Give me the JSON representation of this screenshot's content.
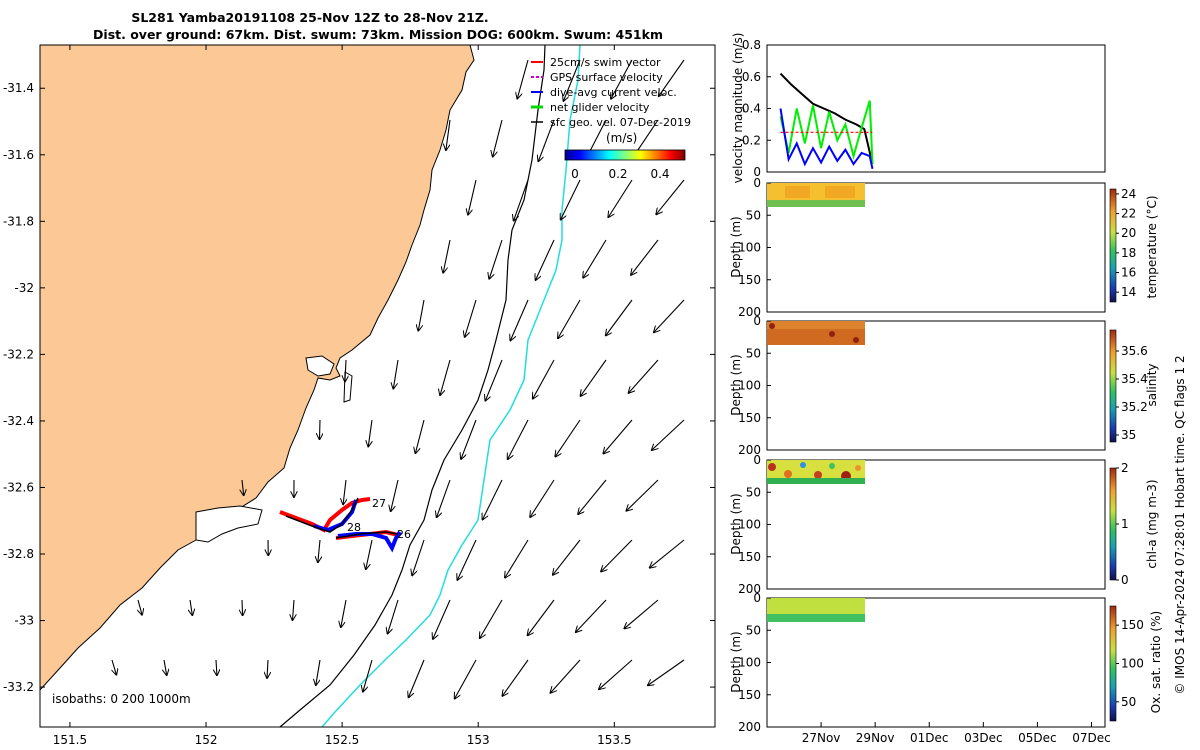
{
  "title_line1": "SL281 Yamba20191108 25-Nov 12Z to 28-Nov 21Z.",
  "title_line2": "Dist. over ground: 67km. Dist. swum: 73km. Mission DOG: 600km. Swum: 451km",
  "map": {
    "type": "map",
    "lon_ticks": [
      "151.5",
      "152",
      "152.5",
      "153",
      "153.5"
    ],
    "lat_ticks": [
      "-31.4",
      "-31.6",
      "-31.8",
      "-32",
      "-32.2",
      "-32.4",
      "-32.6",
      "-32.8",
      "-33",
      "-33.2"
    ],
    "lon_range": [
      151.39,
      153.87
    ],
    "lat_range": [
      -33.32,
      -31.27
    ],
    "legend": [
      {
        "label": "25cm/s swim vector",
        "color": "#ff0000",
        "style": "solid"
      },
      {
        "label": "GPS surface velocity",
        "color": "#cc00cc",
        "style": "dashed"
      },
      {
        "label": "dive-avg current veloc.",
        "color": "#0000ff",
        "style": "solid"
      },
      {
        "label": "net glider velocity",
        "color": "#00dd00",
        "style": "solid"
      },
      {
        "label": "sfc geo. vel. 07-Dec-2019",
        "color": "#000000",
        "style": "solid"
      }
    ],
    "colorbar_title": "(m/s)",
    "colorbar_ticks": [
      "0",
      "0.2",
      "0.4"
    ],
    "isobaths_label": "isobaths: 0   200  1000m",
    "track_labels": [
      "27",
      "28",
      "26"
    ],
    "land_color": "#fbc896",
    "contour_200_color": "#000000",
    "contour_1000_color": "#22dddd"
  },
  "chart_data": [
    {
      "type": "line",
      "ylabel": "velocity magnitude (m/s)",
      "ylim": [
        0,
        0.8
      ],
      "yticks": [
        "0",
        "0.2",
        "0.4",
        "0.6",
        "0.8"
      ],
      "x_dates": [
        "27Nov",
        "29Nov",
        "01Dec",
        "03Dec",
        "05Dec",
        "07Dec"
      ],
      "series": [
        {
          "color": "#000000",
          "x": [
            25.5,
            25.9,
            26.3,
            26.7,
            27.1,
            27.5,
            27.9,
            28.3,
            28.6,
            28.9
          ],
          "values": [
            0.62,
            0.55,
            0.49,
            0.43,
            0.4,
            0.37,
            0.33,
            0.3,
            0.27,
            0.05
          ]
        },
        {
          "color": "#00ee00",
          "x": [
            25.5,
            25.8,
            26.1,
            26.4,
            26.7,
            27.0,
            27.3,
            27.6,
            27.9,
            28.2,
            28.5,
            28.8,
            28.9
          ],
          "values": [
            0.35,
            0.12,
            0.4,
            0.18,
            0.42,
            0.15,
            0.38,
            0.2,
            0.3,
            0.1,
            0.28,
            0.45,
            0.05
          ]
        },
        {
          "color": "#0000ff",
          "x": [
            25.5,
            25.8,
            26.1,
            26.4,
            26.7,
            27.0,
            27.3,
            27.6,
            27.9,
            28.2,
            28.5,
            28.8,
            28.9
          ],
          "values": [
            0.4,
            0.08,
            0.18,
            0.05,
            0.15,
            0.06,
            0.16,
            0.07,
            0.14,
            0.05,
            0.12,
            0.1,
            0.02
          ]
        },
        {
          "color": "#ff0000",
          "x": [
            25.5,
            28.9
          ],
          "values": [
            0.25,
            0.25
          ]
        }
      ]
    },
    {
      "type": "heatmap",
      "ylabel": "Depth (m)",
      "ylim": [
        200,
        0
      ],
      "yticks": [
        "0",
        "50",
        "100",
        "150",
        "200"
      ],
      "cbar_label": "temperature (°C)",
      "cbar_ticks": [
        "14",
        "16",
        "18",
        "20",
        "22",
        "24"
      ],
      "crange": [
        13,
        24.5
      ]
    },
    {
      "type": "heatmap",
      "ylabel": "Depth (m)",
      "ylim": [
        200,
        0
      ],
      "yticks": [
        "0",
        "50",
        "100",
        "150",
        "200"
      ],
      "cbar_label": "salinity",
      "cbar_ticks": [
        "35",
        "35.2",
        "35.4",
        "35.6"
      ],
      "crange": [
        34.95,
        35.75
      ]
    },
    {
      "type": "heatmap",
      "ylabel": "Depth (m)",
      "ylim": [
        200,
        0
      ],
      "yticks": [
        "0",
        "50",
        "100",
        "150",
        "200"
      ],
      "cbar_label": "chl-a (mg m-3)",
      "cbar_ticks": [
        "0",
        "1",
        "2"
      ],
      "crange": [
        0,
        2
      ]
    },
    {
      "type": "heatmap",
      "ylabel": "Depth (m)",
      "ylim": [
        200,
        0
      ],
      "yticks": [
        "0",
        "50",
        "100",
        "150",
        "200"
      ],
      "cbar_label": "Ox. sat. ratio (%)",
      "cbar_ticks": [
        "50",
        "100",
        "150"
      ],
      "crange": [
        25,
        175
      ]
    }
  ],
  "credit": "© IMOS 14-Apr-2024 07:28:01 Hobart time. QC flags 1  2"
}
